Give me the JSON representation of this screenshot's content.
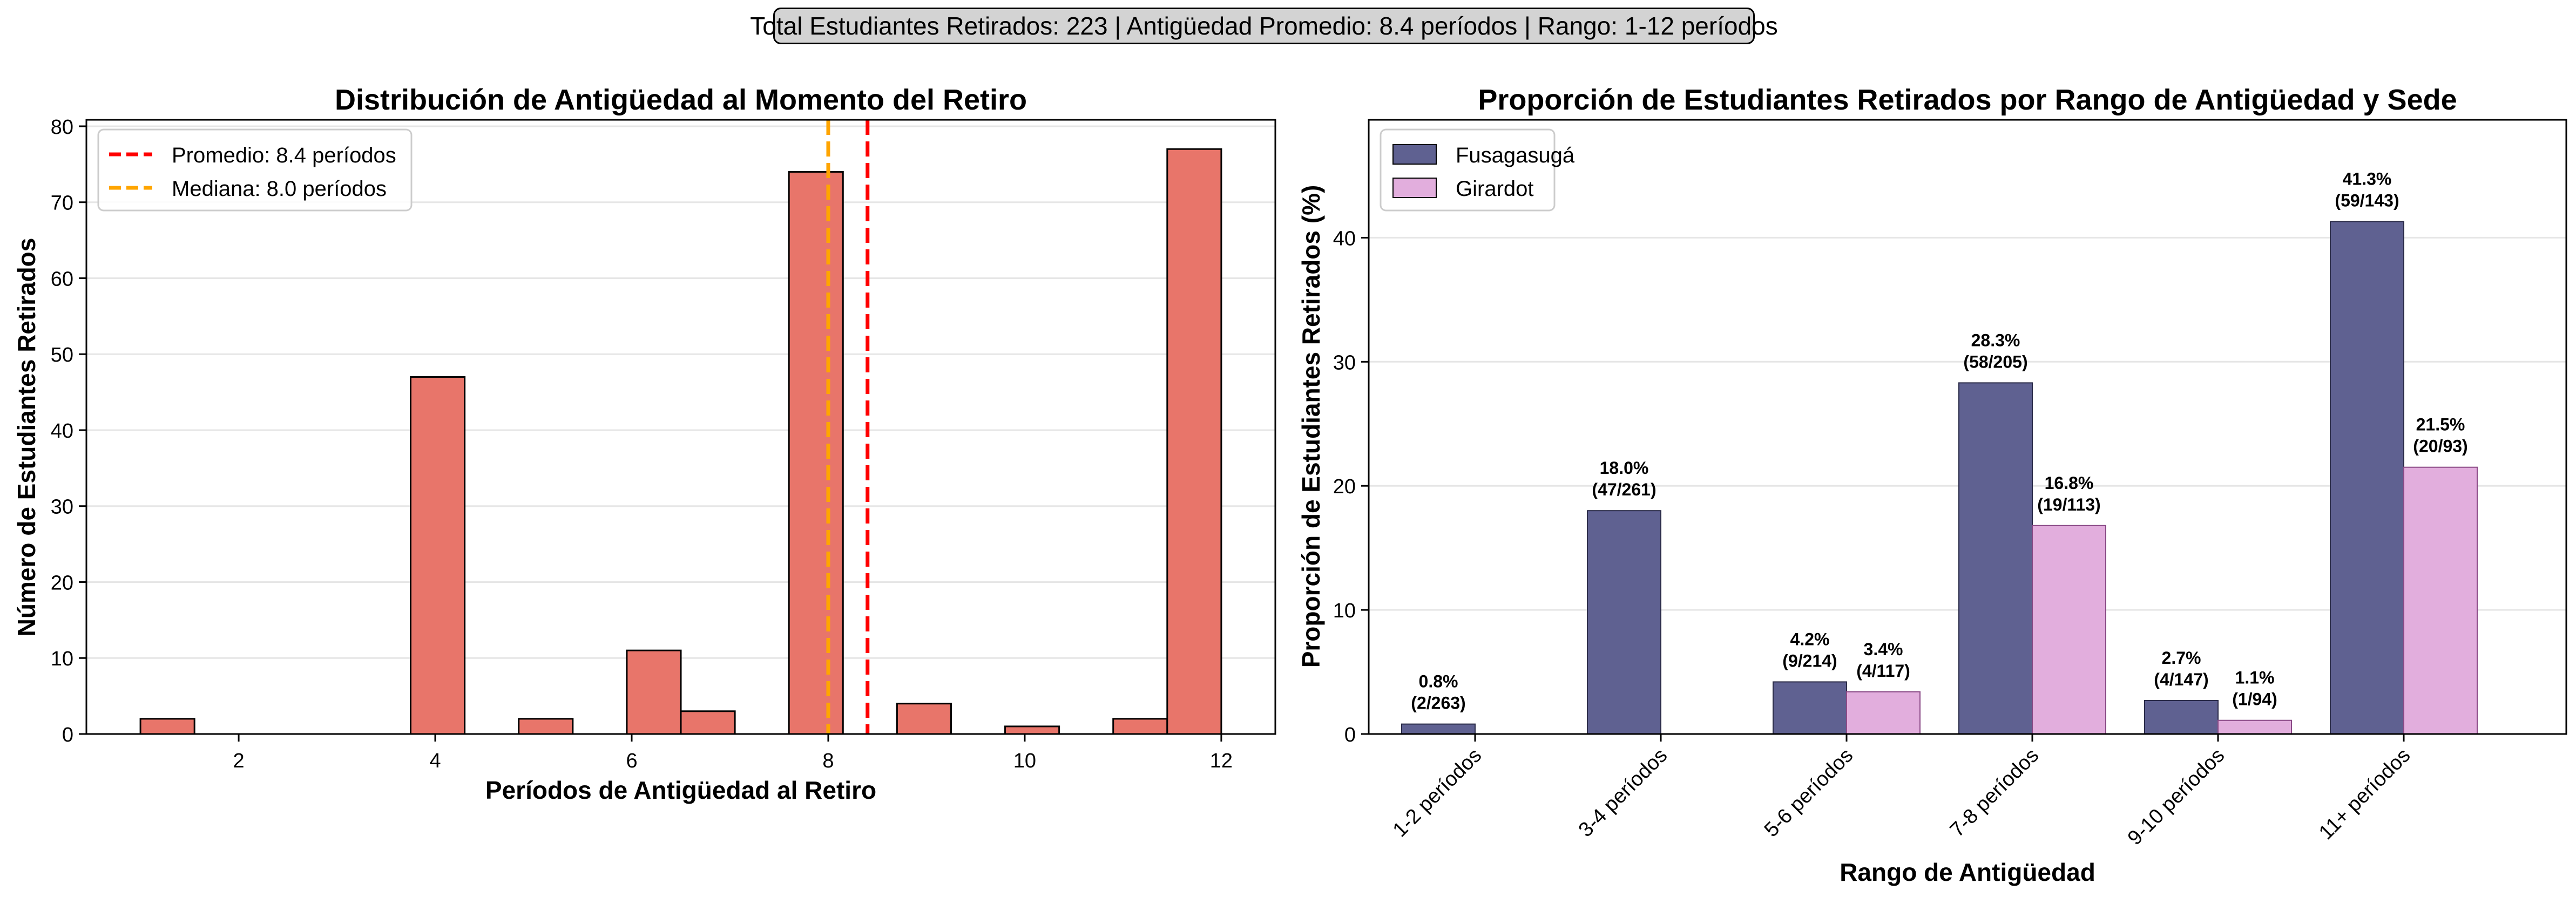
{
  "summary_box": "Total Estudiantes Retirados: 223 | Antigüedad Promedio: 8.4 períodos | Rango: 1-12 períodos",
  "colors": {
    "histogram_bar": "#E8756A",
    "mean_line": "#ff0000",
    "median_line": "#ffa500",
    "fusagasuga": "#5f6191",
    "girardot": "#e2aedd",
    "grid": "#e6e6e6"
  },
  "chart_data": [
    {
      "type": "bar",
      "title": "Distribución de Antigüedad al Momento del Retiro",
      "xlabel": "Períodos de Antigüedad al Retiro",
      "ylabel": "Número de Estudiantes Retirados",
      "bin_edges": [
        1.0,
        1.55,
        2.1,
        2.65,
        3.2,
        3.75,
        4.3,
        4.85,
        5.4,
        5.95,
        6.5,
        7.05,
        7.6,
        8.15,
        8.7,
        9.25,
        9.8,
        10.35,
        10.9,
        11.45,
        12.0
      ],
      "values": [
        2,
        0,
        0,
        0,
        0,
        47,
        0,
        2,
        0,
        11,
        3,
        0,
        74,
        0,
        4,
        0,
        1,
        0,
        2,
        77
      ],
      "xticks": [
        2,
        4,
        6,
        8,
        10,
        12
      ],
      "yticks": [
        0,
        10,
        20,
        30,
        40,
        50,
        60,
        70,
        80
      ],
      "xlim": [
        0.45,
        12.55
      ],
      "ylim": [
        0,
        80.85
      ],
      "grid": "y",
      "reference_lines": [
        {
          "label": "Promedio: 8.4 períodos",
          "x": 8.4,
          "style": "dashed",
          "color": "#ff0000"
        },
        {
          "label": "Mediana: 8.0 períodos",
          "x": 8.0,
          "style": "dashed",
          "color": "#ffa500"
        }
      ],
      "legend": "top-left"
    },
    {
      "type": "bar",
      "title": "Proporción de Estudiantes Retirados por Rango de Antigüedad y Sede",
      "xlabel": "Rango de Antigüedad",
      "ylabel": "Proporción de Estudiantes Retirados (%)",
      "categories": [
        "1-2 períodos",
        "3-4 períodos",
        "5-6 períodos",
        "7-8 períodos",
        "9-10 períodos",
        "11+ períodos"
      ],
      "series": [
        {
          "name": "Fusagasugá",
          "color": "#5f6191",
          "values": [
            0.8,
            18.0,
            4.2,
            28.3,
            2.7,
            41.3
          ],
          "labels": [
            "0.8%\n(2/263)",
            "18.0%\n(47/261)",
            "4.2%\n(9/214)",
            "28.3%\n(58/205)",
            "2.7%\n(4/147)",
            "41.3%\n(59/143)"
          ]
        },
        {
          "name": "Girardot",
          "color": "#e2aedd",
          "values": [
            null,
            null,
            3.4,
            16.8,
            1.1,
            21.5
          ],
          "labels": [
            null,
            null,
            "3.4%\n(4/117)",
            "16.8%\n(19/113)",
            "1.1%\n(1/94)",
            "21.5%\n(20/93)"
          ]
        }
      ],
      "yticks": [
        0,
        10,
        20,
        30,
        40
      ],
      "ylim": [
        0,
        49.5
      ],
      "grid": "y",
      "legend": "top-left"
    }
  ]
}
